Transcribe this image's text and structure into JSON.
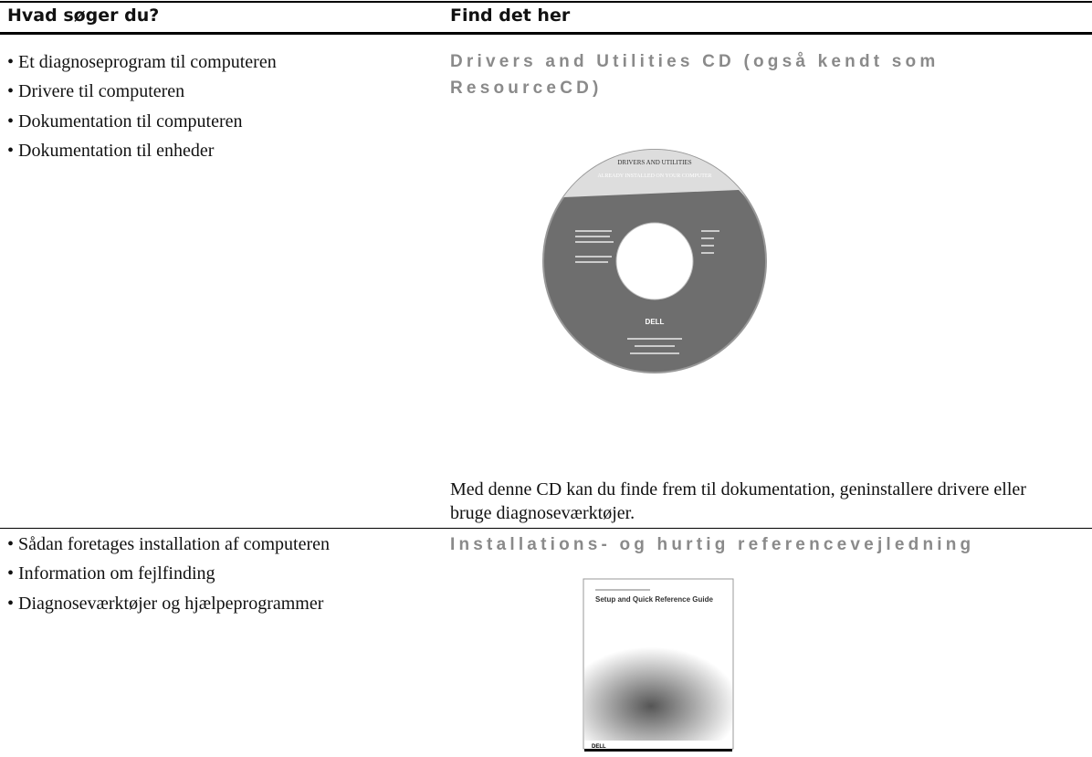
{
  "header": {
    "col1": "Hvad søger du?",
    "col2": "Find det her"
  },
  "rows": [
    {
      "items": [
        "Et diagnoseprogram til computeren",
        "Drivere til computeren",
        "Dokumentation til computeren",
        "Dokumentation til enheder"
      ],
      "title": "Drivers and Utilities CD (også kendt som ResourceCD)",
      "image": {
        "texts": [
          "DRIVERS AND UTILITIES",
          "ALREADY INSTALLED ON YOUR COMPUTER",
          "DELL"
        ]
      },
      "description": "Med denne CD kan du finde frem til dokumentation, geninstallere drivere eller bruge diagnoseværktøjer."
    },
    {
      "items": [
        "Sådan foretages installation af computeren",
        "Information om fejlfinding",
        "Diagnoseværktøjer og hjælpeprogrammer"
      ],
      "title": "Installations- og hurtig referencevejledning",
      "image": {
        "texts": [
          "Setup and Quick Reference Guide",
          "DELL"
        ]
      }
    }
  ]
}
